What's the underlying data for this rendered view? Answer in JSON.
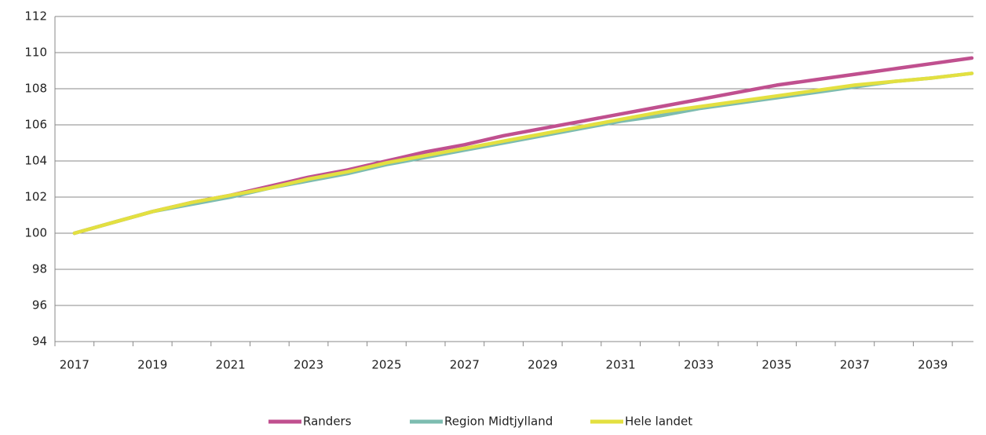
{
  "chart_data": {
    "type": "line",
    "categories": [
      "2017",
      null,
      "2019",
      null,
      "2021",
      null,
      "2023",
      null,
      "2025",
      null,
      "2027",
      null,
      "2029",
      null,
      "2031",
      null,
      "2033",
      null,
      "2035",
      null,
      "2037",
      null,
      "2039",
      null
    ],
    "series": [
      {
        "name": "Randers",
        "color": "#c0508f",
        "values": [
          100,
          100.6,
          101.2,
          101.7,
          102.1,
          102.6,
          103.1,
          103.5,
          104.0,
          104.5,
          104.9,
          105.4,
          105.8,
          106.2,
          106.6,
          107.0,
          107.4,
          107.8,
          108.2,
          108.5,
          108.8,
          109.1,
          109.4,
          109.7
        ]
      },
      {
        "name": "Region Midtjylland",
        "color": "#7dbcb0",
        "values": [
          100,
          100.6,
          101.2,
          101.6,
          102.0,
          102.5,
          102.9,
          103.3,
          103.8,
          104.2,
          104.6,
          105.0,
          105.4,
          105.8,
          106.2,
          106.5,
          106.9,
          107.2,
          107.5,
          107.8,
          108.1,
          108.4,
          108.6,
          108.85
        ]
      },
      {
        "name": "Hele landet",
        "color": "#e3e040",
        "values": [
          100,
          100.6,
          101.2,
          101.7,
          102.1,
          102.5,
          103.0,
          103.4,
          103.9,
          104.3,
          104.7,
          105.1,
          105.5,
          105.9,
          106.3,
          106.7,
          107.0,
          107.3,
          107.6,
          107.9,
          108.2,
          108.4,
          108.6,
          108.85
        ]
      }
    ],
    "ylim": [
      94,
      112
    ],
    "yticks": [
      94,
      96,
      98,
      100,
      102,
      104,
      106,
      108,
      110,
      112
    ],
    "grid": true,
    "legend": "bottom"
  }
}
